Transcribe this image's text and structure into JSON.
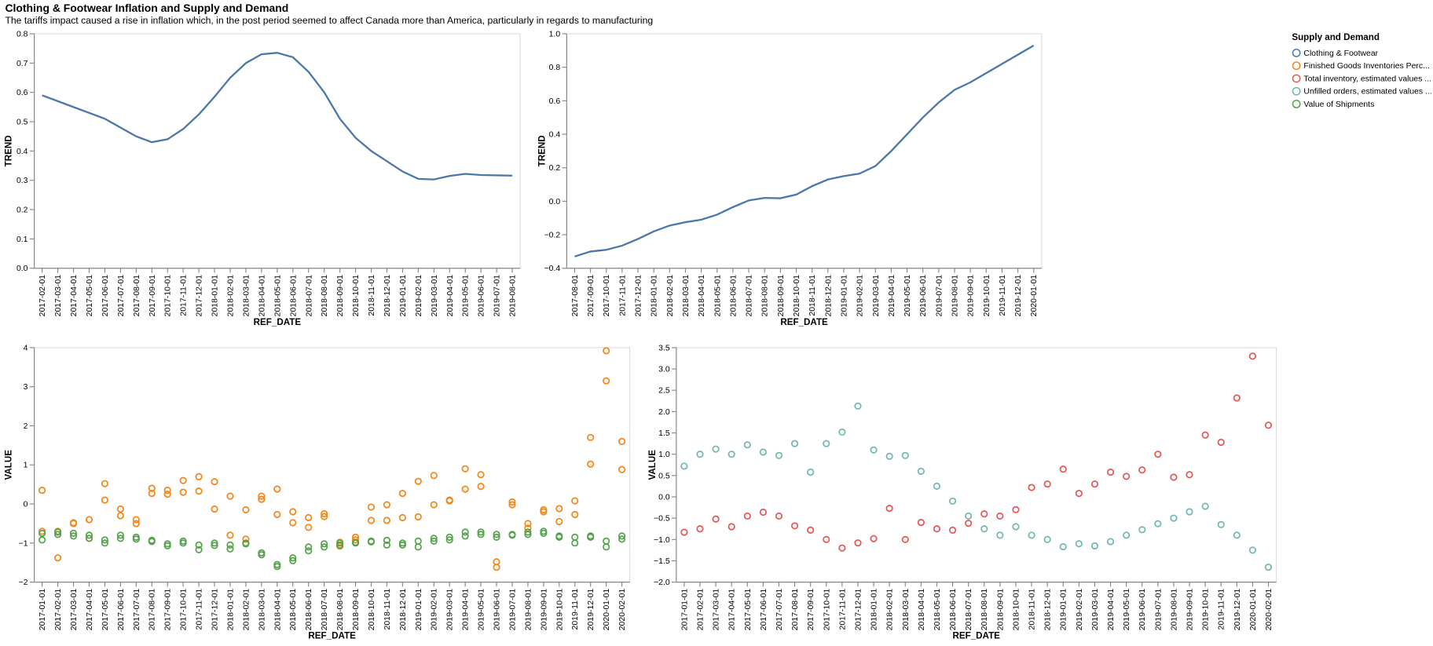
{
  "title": "Clothing & Footwear Inflation and Supply and Demand",
  "subtitle": "The tariffs impact caused a rise in inflation which, in the post period seemed to affect Canada more than America, particularly in regards to manufacturing",
  "legend": {
    "title": "Supply and Demand",
    "items": [
      {
        "name": "Clothing & Footwear",
        "color": "#4c78a8"
      },
      {
        "name": "Finished Goods Inventories Perc...",
        "color": "#f58518"
      },
      {
        "name": "Total inventory, estimated values ...",
        "color": "#e45756"
      },
      {
        "name": "Unfilled orders, estimated values ...",
        "color": "#72b7b2"
      },
      {
        "name": "Value of Shipments",
        "color": "#54a24b"
      }
    ]
  },
  "chart_data": [
    {
      "type": "line",
      "xlabel": "REF_DATE",
      "ylabel": "TREND",
      "grid": false,
      "x": [
        "2017-02-01",
        "2017-03-01",
        "2017-04-01",
        "2017-05-01",
        "2017-06-01",
        "2017-07-01",
        "2017-08-01",
        "2017-09-01",
        "2017-10-01",
        "2017-11-01",
        "2017-12-01",
        "2018-01-01",
        "2018-02-01",
        "2018-03-01",
        "2018-04-01",
        "2018-05-01",
        "2018-06-01",
        "2018-07-01",
        "2018-08-01",
        "2018-09-01",
        "2018-10-01",
        "2018-11-01",
        "2018-12-01",
        "2019-01-01",
        "2019-02-01",
        "2019-03-01",
        "2019-04-01",
        "2019-05-01",
        "2019-06-01",
        "2019-07-01",
        "2019-08-01"
      ],
      "ylim": [
        0,
        0.8
      ],
      "yticks": [
        {
          "value": 0,
          "label": "0.0"
        },
        0.1,
        0.2,
        0.3,
        0.4,
        0.5,
        0.6,
        0.7,
        0.8
      ],
      "series": [
        {
          "name": "Clothing & Footwear",
          "color": "#4c78a8",
          "values": [
            0.59,
            0.57,
            0.55,
            0.53,
            0.51,
            0.48,
            0.45,
            0.43,
            0.44,
            0.475,
            0.525,
            0.585,
            0.65,
            0.7,
            0.73,
            0.735,
            0.72,
            0.67,
            0.6,
            0.51,
            0.445,
            0.4,
            0.365,
            0.33,
            0.305,
            0.303,
            0.315,
            0.322,
            0.318,
            0.317,
            0.316
          ]
        }
      ]
    },
    {
      "type": "line",
      "xlabel": "REF_DATE",
      "ylabel": "TREND",
      "grid": false,
      "x": [
        "2017-08-01",
        "2017-09-01",
        "2017-10-01",
        "2017-11-01",
        "2017-12-01",
        "2018-01-01",
        "2018-02-01",
        "2018-03-01",
        "2018-04-01",
        "2018-05-01",
        "2018-06-01",
        "2018-07-01",
        "2018-08-01",
        "2018-09-01",
        "2018-10-01",
        "2018-11-01",
        "2018-12-01",
        "2019-01-01",
        "2019-02-01",
        "2019-03-01",
        "2019-04-01",
        "2019-05-01",
        "2019-06-01",
        "2019-07-01",
        "2019-08-01",
        "2019-09-01",
        "2019-10-01",
        "2019-11-01",
        "2019-12-01",
        "2020-01-01"
      ],
      "ylim": [
        -0.4,
        1.0
      ],
      "yticks": [
        {
          "value": -0.4,
          "label": "−0.4"
        },
        {
          "value": -0.2,
          "label": "−0.2"
        },
        {
          "value": 0,
          "label": "0.0"
        },
        0.2,
        0.4,
        0.6,
        0.8,
        {
          "value": 1.0,
          "label": "1.0"
        }
      ],
      "series": [
        {
          "name": "Clothing & Footwear",
          "color": "#4c78a8",
          "values": [
            -0.33,
            -0.3,
            -0.29,
            -0.265,
            -0.225,
            -0.18,
            -0.145,
            -0.125,
            -0.11,
            -0.08,
            -0.035,
            0.005,
            0.02,
            0.018,
            0.04,
            0.09,
            0.13,
            0.15,
            0.165,
            0.21,
            0.3,
            0.4,
            0.5,
            0.59,
            0.665,
            0.71,
            0.765,
            0.82,
            0.875,
            0.93
          ]
        }
      ]
    },
    {
      "type": "scatter",
      "xlabel": "REF_DATE",
      "ylabel": "VALUE",
      "grid": false,
      "x": [
        "2017-01-01",
        "2017-02-01",
        "2017-03-01",
        "2017-04-01",
        "2017-05-01",
        "2017-06-01",
        "2017-07-01",
        "2017-08-01",
        "2017-09-01",
        "2017-10-01",
        "2017-11-01",
        "2017-12-01",
        "2018-01-01",
        "2018-02-01",
        "2018-03-01",
        "2018-04-01",
        "2018-05-01",
        "2018-06-01",
        "2018-07-01",
        "2018-08-01",
        "2018-09-01",
        "2018-10-01",
        "2018-11-01",
        "2018-12-01",
        "2019-01-01",
        "2019-02-01",
        "2019-03-01",
        "2019-04-01",
        "2019-05-01",
        "2019-06-01",
        "2019-07-01",
        "2019-08-01",
        "2019-09-01",
        "2019-10-01",
        "2019-11-01",
        "2019-12-01",
        "2020-01-01",
        "2020-02-01"
      ],
      "ylim": [
        -2,
        4
      ],
      "yticks": [
        {
          "value": -2,
          "label": "−2"
        },
        {
          "value": -1,
          "label": "−1"
        },
        0,
        1,
        2,
        3,
        4
      ],
      "series": [
        {
          "name": "Finished Goods Inventories Perc...",
          "color": "#f58518",
          "values": [
            0.35,
            -0.7,
            -0.48,
            -0.4,
            0.52,
            -0.13,
            -0.4,
            0.4,
            0.35,
            0.6,
            0.7,
            0.57,
            0.2,
            -0.15,
            0.2,
            0.38,
            -0.2,
            -0.35,
            -0.25,
            -0.98,
            -0.85,
            -0.08,
            -0.02,
            0.27,
            0.58,
            0.73,
            0.1,
            0.9,
            0.75,
            -1.48,
            0.05,
            -0.5,
            -0.15,
            -0.12,
            0.08,
            1.7,
            3.92,
            1.6
          ]
        },
        {
          "name": "Finished Goods Inventories Perc...",
          "color": "#f58518",
          "values": [
            -0.7,
            -1.38,
            -0.5,
            -0.88,
            0.1,
            -0.3,
            -0.5,
            0.27,
            0.25,
            0.3,
            0.33,
            -0.13,
            -0.8,
            -0.9,
            0.12,
            -0.27,
            -0.48,
            -0.6,
            -0.32,
            -1.08,
            -0.92,
            -0.42,
            -0.42,
            -0.35,
            -0.33,
            -0.02,
            0.08,
            0.38,
            0.45,
            -1.62,
            -0.02,
            -0.62,
            -0.2,
            -0.45,
            -0.27,
            1.02,
            3.15,
            0.88
          ]
        },
        {
          "name": "Value of Shipments",
          "color": "#54a24b",
          "values": [
            -0.75,
            -0.72,
            -0.75,
            -0.8,
            -0.92,
            -0.8,
            -0.85,
            -0.93,
            -1.02,
            -0.95,
            -1.05,
            -1.0,
            -1.05,
            -1.0,
            -1.25,
            -1.55,
            -1.38,
            -1.1,
            -1.02,
            -1.0,
            -0.98,
            -0.95,
            -0.93,
            -1.0,
            -0.95,
            -0.88,
            -0.85,
            -0.72,
            -0.72,
            -0.78,
            -0.78,
            -0.72,
            -0.7,
            -0.82,
            -0.85,
            -0.82,
            -0.95,
            -0.82
          ]
        },
        {
          "name": "Value of Shipments",
          "color": "#54a24b",
          "values": [
            -0.92,
            -0.78,
            -0.82,
            -0.88,
            -1.0,
            -0.88,
            -0.9,
            -0.96,
            -1.07,
            -1.0,
            -1.17,
            -1.06,
            -1.15,
            -1.02,
            -1.3,
            -1.6,
            -1.45,
            -1.2,
            -1.1,
            -1.05,
            -1.0,
            -0.97,
            -1.05,
            -1.05,
            -1.1,
            -0.95,
            -0.92,
            -0.82,
            -0.78,
            -0.85,
            -0.8,
            -0.78,
            -0.75,
            -0.85,
            -1.0,
            -0.85,
            -1.1,
            -0.9
          ]
        }
      ]
    },
    {
      "type": "scatter",
      "xlabel": "REF_DATE",
      "ylabel": "VALUE",
      "grid": false,
      "x": [
        "2017-01-01",
        "2017-02-01",
        "2017-03-01",
        "2017-04-01",
        "2017-05-01",
        "2017-06-01",
        "2017-07-01",
        "2017-08-01",
        "2017-09-01",
        "2017-10-01",
        "2017-11-01",
        "2017-12-01",
        "2018-01-01",
        "2018-02-01",
        "2018-03-01",
        "2018-04-01",
        "2018-05-01",
        "2018-06-01",
        "2018-07-01",
        "2018-08-01",
        "2018-09-01",
        "2018-10-01",
        "2018-11-01",
        "2018-12-01",
        "2019-01-01",
        "2019-02-01",
        "2019-03-01",
        "2019-04-01",
        "2019-05-01",
        "2019-06-01",
        "2019-07-01",
        "2019-08-01",
        "2019-09-01",
        "2019-10-01",
        "2019-11-01",
        "2019-12-01",
        "2020-01-01",
        "2020-02-01"
      ],
      "ylim": [
        -2.0,
        3.5
      ],
      "yticks": [
        {
          "value": -2.0,
          "label": "−2.0"
        },
        {
          "value": -1.5,
          "label": "−1.5"
        },
        {
          "value": -1.0,
          "label": "−1.0"
        },
        {
          "value": -0.5,
          "label": "−0.5"
        },
        {
          "value": 0,
          "label": "0.0"
        },
        0.5,
        {
          "value": 1.0,
          "label": "1.0"
        },
        1.5,
        {
          "value": 2.0,
          "label": "2.0"
        },
        2.5,
        {
          "value": 3.0,
          "label": "3.0"
        },
        3.5
      ],
      "series": [
        {
          "name": "Total inventory, estimated values ...",
          "color": "#e45756",
          "values": [
            -0.83,
            -0.75,
            -0.52,
            -0.7,
            -0.45,
            -0.36,
            -0.45,
            -0.68,
            -0.78,
            -1.0,
            -1.2,
            -1.08,
            -0.98,
            -0.27,
            -1.0,
            -0.6,
            -0.75,
            -0.78,
            -0.62,
            -0.4,
            -0.45,
            -0.3,
            0.22,
            0.3,
            0.65,
            0.08,
            0.3,
            0.58,
            0.48,
            0.63,
            1.0,
            0.46,
            0.52,
            1.45,
            1.28,
            2.32,
            3.3,
            1.68
          ]
        },
        {
          "name": "Unfilled orders, estimated values ...",
          "color": "#72b7b2",
          "values": [
            0.72,
            1.0,
            1.12,
            1.0,
            1.22,
            1.05,
            0.97,
            1.25,
            0.58,
            1.25,
            1.52,
            2.13,
            1.1,
            0.95,
            0.97,
            0.6,
            0.25,
            -0.1,
            -0.45,
            -0.75,
            -0.9,
            -0.7,
            -0.9,
            -1.0,
            -1.17,
            -1.1,
            -1.15,
            -1.05,
            -0.9,
            -0.77,
            -0.63,
            -0.5,
            -0.35,
            -0.22,
            -0.65,
            -0.9,
            -1.25,
            -1.65
          ]
        }
      ]
    }
  ]
}
